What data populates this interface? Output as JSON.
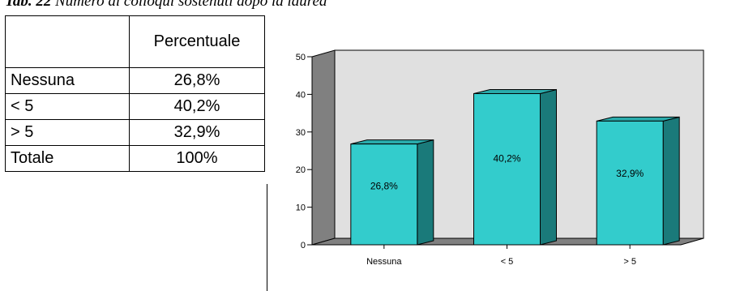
{
  "caption": {
    "label": "Tab. 22",
    "text": "Numero di colloqui sostenuti dopo la laurea"
  },
  "table": {
    "header": [
      "",
      "Percentuale"
    ],
    "rows": [
      [
        "Nessuna",
        "26,8%"
      ],
      [
        "< 5",
        "40,2%"
      ],
      [
        "> 5",
        "32,9%"
      ],
      [
        "Totale",
        "100%"
      ]
    ]
  },
  "chart_data": {
    "type": "bar",
    "categories": [
      "Nessuna",
      "< 5",
      "> 5"
    ],
    "values": [
      26.8,
      40.2,
      32.9
    ],
    "data_labels": [
      "26,8%",
      "40,2%",
      "32,9%"
    ],
    "yticks": [
      0,
      10,
      20,
      30,
      40,
      50
    ],
    "ylim": [
      0,
      50
    ],
    "grid": false,
    "three_d": true,
    "colors": {
      "bar_front": "#33CCCC",
      "bar_side": "#1A7A7A",
      "bar_top": "#2AABAB",
      "back_wall": "#E0E0E0",
      "side_wall": "#808080",
      "floor": "#808080"
    }
  }
}
